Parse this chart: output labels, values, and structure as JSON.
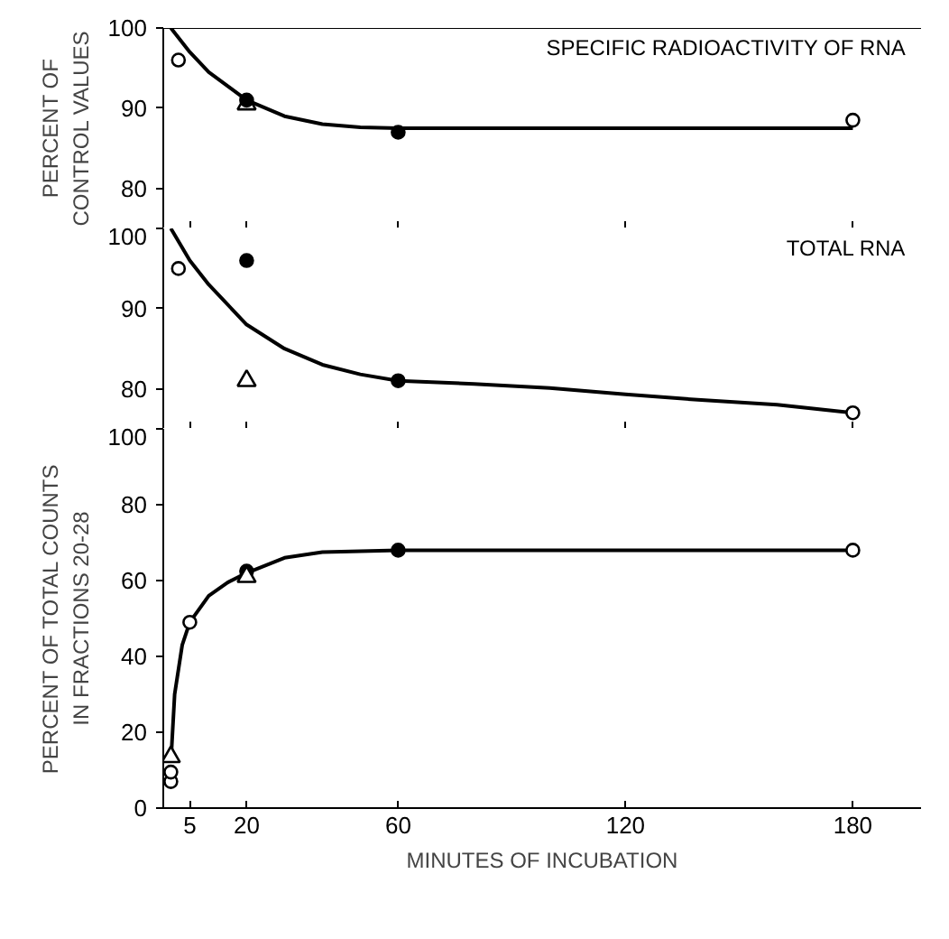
{
  "chart_data": [
    {
      "type": "scatter",
      "annotations": [
        "SPECIFIC RADIOACTIVITY OF RNA"
      ],
      "ylabel": "PERCENT OF\nCONTROL VALUES",
      "xlim": [
        -2,
        198
      ],
      "xticks": [
        5,
        20,
        60,
        120,
        180
      ],
      "ylim": [
        75,
        100
      ],
      "yticks": [
        80,
        90,
        100
      ],
      "tick_labels": "y",
      "series": [
        {
          "type": "line",
          "color": "#000000",
          "marker": "none",
          "x": [
            0,
            5,
            10,
            20,
            30,
            40,
            50,
            60,
            100,
            180
          ],
          "values": [
            100,
            97,
            94.5,
            91,
            89,
            88,
            87.6,
            87.5,
            87.5,
            87.5
          ]
        },
        {
          "color": "#ffffff",
          "marker": "circle",
          "x": [
            2,
            180
          ],
          "values": [
            96,
            88.5
          ]
        },
        {
          "color": "#ffffff",
          "marker": "triangle",
          "x": [
            20
          ],
          "values": [
            90.5
          ]
        },
        {
          "color": "#000000",
          "marker": "circle",
          "x": [
            20,
            60
          ],
          "values": [
            91,
            87
          ]
        }
      ]
    },
    {
      "type": "scatter",
      "annotations": [
        "TOTAL RNA"
      ],
      "xlim": [
        -2,
        198
      ],
      "xticks": [
        5,
        20,
        60,
        120,
        180
      ],
      "ylim": [
        75,
        100
      ],
      "yticks": [
        80,
        90,
        100
      ],
      "tick_labels": "y",
      "series": [
        {
          "type": "line",
          "color": "#000000",
          "marker": "none",
          "x": [
            0,
            5,
            10,
            20,
            30,
            40,
            50,
            60,
            80,
            100,
            120,
            140,
            160,
            180
          ],
          "values": [
            100,
            96,
            93,
            88,
            85,
            83,
            81.8,
            81,
            80.6,
            80.1,
            79.3,
            78.6,
            78,
            77
          ]
        },
        {
          "color": "#ffffff",
          "marker": "circle",
          "x": [
            2,
            180
          ],
          "values": [
            95,
            77
          ]
        },
        {
          "color": "#000000",
          "marker": "circle",
          "x": [
            20,
            60
          ],
          "values": [
            96,
            81
          ]
        },
        {
          "color": "#ffffff",
          "marker": "triangle",
          "x": [
            20
          ],
          "values": [
            81
          ]
        }
      ]
    },
    {
      "type": "scatter",
      "ylabel": "PERCENT OF TOTAL COUNTS\nIN FRACTIONS 20-28",
      "xlabel": "MINUTES OF INCUBATION",
      "xlim": [
        -2,
        198
      ],
      "xticks": [
        5,
        20,
        60,
        120,
        180
      ],
      "ylim": [
        0,
        100
      ],
      "yticks": [
        0,
        20,
        40,
        60,
        80,
        100
      ],
      "series": [
        {
          "type": "line",
          "color": "#000000",
          "marker": "none",
          "x": [
            0,
            1,
            3,
            5,
            10,
            15,
            20,
            30,
            40,
            60,
            120,
            180
          ],
          "values": [
            12,
            30,
            43,
            49,
            56,
            59.5,
            62,
            66,
            67.5,
            68,
            68,
            68
          ]
        },
        {
          "color": "#ffffff",
          "marker": "circle",
          "x": [
            0,
            0,
            5,
            180
          ],
          "values": [
            7,
            9.5,
            49,
            68
          ]
        },
        {
          "color": "#000000",
          "marker": "circle",
          "x": [
            20,
            60
          ],
          "values": [
            62.5,
            68
          ]
        },
        {
          "color": "#ffffff",
          "marker": "triangle",
          "x": [
            0,
            20
          ],
          "values": [
            13.5,
            61
          ]
        }
      ]
    }
  ]
}
